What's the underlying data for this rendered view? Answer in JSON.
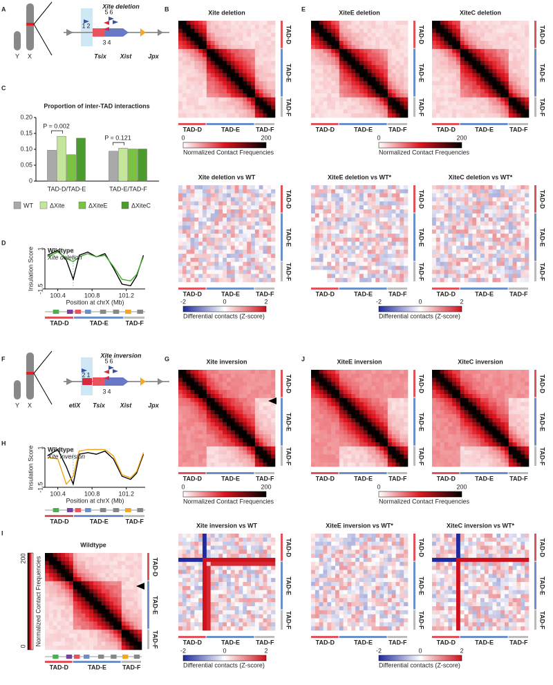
{
  "panels": {
    "letters": [
      "A",
      "B",
      "C",
      "D",
      "E",
      "F",
      "G",
      "H",
      "I",
      "J"
    ],
    "a": {
      "title": "Xite deletion",
      "chrom": [
        "Y",
        "X"
      ],
      "genes": [
        "Tsix",
        "Xist",
        "Jpx"
      ],
      "sites": [
        "1",
        "2",
        "3",
        "4",
        "5",
        "6"
      ]
    },
    "f": {
      "title": "Xite inversion",
      "chrom": [
        "Y",
        "X"
      ],
      "genes": [
        "etiX",
        "Tsix",
        "Xist",
        "Jpx"
      ],
      "sites": [
        "2",
        "1",
        "3",
        "4",
        "5",
        "6"
      ]
    },
    "maps": [
      {
        "title": "Xite deletion"
      },
      {
        "title": "XiteE deletion"
      },
      {
        "title": "XiteC deletion"
      },
      {
        "title": "Xite deletion vs WT"
      },
      {
        "title": "XiteE deletion vs WT*"
      },
      {
        "title": "XiteC deletion vs WT*"
      },
      {
        "title": "Xite inversion"
      },
      {
        "title": "XiteE inversion"
      },
      {
        "title": "XiteC inversion"
      },
      {
        "title": "Xite inversion vs WT"
      },
      {
        "title": "XiteE inversion vs WT*"
      },
      {
        "title": "XiteC inversion vs WT*"
      },
      {
        "title": "Wildtype"
      }
    ],
    "tad_labels": [
      "TAD-D",
      "TAD-E",
      "TAD-F"
    ],
    "colorbars": {
      "contact": {
        "label": "Normalized Contact Frequencies",
        "ticks": [
          0,
          200
        ]
      },
      "diff": {
        "label": "Differential contacts (Z-score)",
        "ticks": [
          -2,
          0,
          2
        ]
      }
    }
  },
  "chart_data": [
    {
      "type": "bar",
      "title": "Proportion of inter-TAD interactions",
      "categories": [
        "TAD-D/TAD-E",
        "TAD-E/TAD-F"
      ],
      "series": [
        {
          "name": "WT",
          "color": "#a9a9a9",
          "values": [
            0.097,
            0.094
          ]
        },
        {
          "name": "ΔXite",
          "color": "#c3e69b",
          "values": [
            0.141,
            0.104
          ]
        },
        {
          "name": "ΔXiteE",
          "color": "#7cc242",
          "values": [
            0.083,
            0.101
          ]
        },
        {
          "name": "ΔXiteC",
          "color": "#4c9b2f",
          "values": [
            0.135,
            0.101
          ]
        }
      ],
      "annotations": [
        "P = 0.002",
        "P = 0.121"
      ],
      "ylim": [
        0,
        0.2
      ],
      "yticks": [
        0,
        0.05,
        {
          "value": 0.1,
          "label": "0.10"
        },
        0.15,
        {
          "value": 0.2,
          "label": "0.20"
        }
      ]
    },
    {
      "type": "line",
      "xlabel": "Position at chrX (Mb)",
      "ylabel": "Insulation Score",
      "x": [
        100.28,
        100.4,
        100.5,
        100.58,
        100.65,
        100.75,
        100.85,
        100.95,
        101.05,
        101.15,
        101.25,
        101.32,
        101.4
      ],
      "series": [
        {
          "name": "Wildtype",
          "color": "#000000",
          "values": [
            0.6,
            0.9,
            0.3,
            -0.9,
            0.6,
            0.8,
            0.5,
            0.7,
            -0.2,
            -1.2,
            -1.3,
            -0.7,
            0.6
          ]
        },
        {
          "name": "Xite deletion",
          "color": "#3fae2a",
          "values": [
            0.5,
            0.8,
            0.4,
            0.2,
            0.5,
            0.7,
            0.5,
            0.6,
            -0.1,
            -0.9,
            -1.0,
            -0.6,
            0.5
          ]
        }
      ],
      "xlim": [
        100.25,
        101.42
      ],
      "ylim": [
        -1.5,
        1
      ],
      "xticks": [
        100.4,
        100.8,
        101.2
      ],
      "yticks": [
        -1.5,
        1
      ]
    },
    {
      "type": "line",
      "xlabel": "Position at chrX (Mb)",
      "ylabel": "Insulation Score",
      "x": [
        100.28,
        100.4,
        100.5,
        100.58,
        100.65,
        100.75,
        100.85,
        100.95,
        101.05,
        101.15,
        101.25,
        101.32,
        101.4
      ],
      "series": [
        {
          "name": "Wildtype",
          "color": "#000000",
          "values": [
            0.5,
            0.9,
            -0.2,
            -1.3,
            0.6,
            0.7,
            0.6,
            0.8,
            0.3,
            -0.8,
            -1.0,
            -0.6,
            0.6
          ]
        },
        {
          "name": "Xite inversion",
          "color": "#f2a20f",
          "values": [
            0.4,
            0.3,
            -1.3,
            -0.8,
            0.8,
            0.9,
            0.9,
            0.9,
            0.5,
            -0.7,
            -0.9,
            -0.5,
            0.7
          ]
        }
      ],
      "xlim": [
        100.25,
        101.42
      ],
      "ylim": [
        -1.5,
        1
      ],
      "xticks": [
        100.4,
        100.8,
        101.2
      ],
      "yticks": [
        -1.5,
        1
      ]
    }
  ]
}
